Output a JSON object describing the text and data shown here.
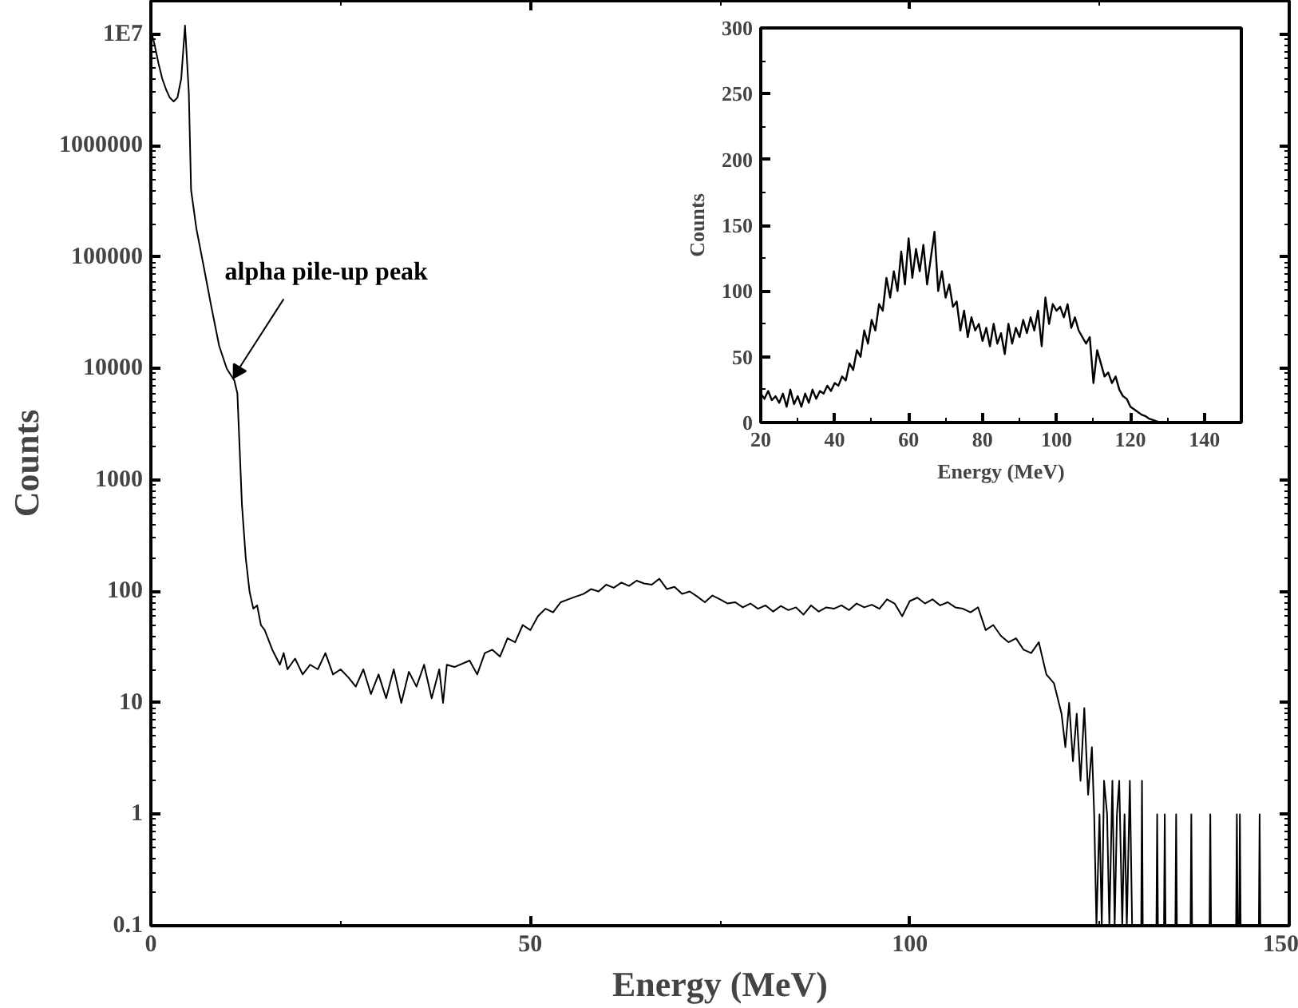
{
  "chart_data": [
    {
      "type": "line",
      "xlabel": "Energy (MeV)",
      "ylabel": "Counts",
      "log": "y",
      "xlim": [
        0,
        150
      ],
      "xticks": [
        0,
        50,
        100,
        150
      ],
      "ylim": [
        0.1,
        20000000
      ],
      "yticks": [
        0.1,
        1,
        10,
        100,
        1000,
        10000,
        100000,
        1000000,
        {
          "value": 10000000,
          "label": "1E7"
        }
      ],
      "grid": false,
      "marker": "none",
      "line_style": "solid",
      "annotations": [
        {
          "text": "alpha pile-up peak",
          "x": 11,
          "y": 7800
        }
      ],
      "series": [
        {
          "color": "#000000",
          "x": [
            0,
            0.5,
            1,
            1.5,
            2,
            2.5,
            3,
            3.5,
            4,
            4.5,
            5,
            5.3,
            6,
            7,
            8,
            9,
            10,
            11,
            11.4,
            12,
            12.5,
            13,
            13.5,
            14,
            14.5,
            15,
            16,
            17,
            17.5,
            18,
            19,
            20,
            21,
            22,
            23,
            24,
            25,
            26,
            27,
            28,
            29,
            30,
            31,
            32,
            33,
            34,
            35,
            36,
            37,
            38,
            38.5,
            39,
            40,
            42,
            43,
            44,
            45,
            46,
            47,
            48,
            49,
            50,
            51,
            52,
            53,
            54,
            55,
            56,
            57,
            58,
            59,
            60,
            61,
            62,
            63,
            64,
            65,
            66,
            67,
            68,
            69,
            70,
            71,
            72,
            73,
            74,
            75,
            76,
            77,
            78,
            79,
            80,
            81,
            82,
            83,
            84,
            85,
            86,
            87,
            88,
            89,
            90,
            91,
            92,
            93,
            94,
            95,
            96,
            97,
            98,
            99,
            100,
            101,
            102,
            103,
            104,
            105,
            106,
            107,
            108,
            109,
            110,
            111,
            112,
            113,
            114,
            115,
            116,
            117,
            118,
            119,
            120,
            120.5,
            121,
            121.5,
            122,
            122.5,
            123,
            123.5,
            124,
            124.3,
            124.6,
            125,
            125.3,
            125.6,
            126,
            126.3,
            126.7,
            127,
            127.3,
            127.6,
            128,
            128.3,
            128.6,
            129,
            129.3,
            130.5,
            130.6,
            130.7,
            132.5,
            132.6,
            132.7,
            133.5,
            133.6,
            133.7,
            135,
            135.1,
            135.2,
            137,
            137.1,
            137.2,
            139.5,
            139.6,
            139.7,
            143,
            143.1,
            143.2,
            143.4,
            143.5,
            143.6,
            146,
            146.1,
            146.2
          ],
          "values": [
            11000000,
            8000000,
            5500000,
            4000000,
            3200000,
            2700000,
            2500000,
            2700000,
            4000000,
            12000000,
            3000000,
            400000,
            180000,
            80000,
            35000,
            16000,
            10000,
            7800,
            6000,
            600,
            200,
            100,
            70,
            75,
            50,
            45,
            30,
            22,
            28,
            20,
            25,
            18,
            22,
            20,
            28,
            18,
            20,
            17,
            14,
            20,
            12,
            18,
            11,
            20,
            10,
            19,
            14,
            22,
            11,
            20,
            10,
            22,
            21,
            24,
            18,
            28,
            30,
            26,
            38,
            35,
            50,
            45,
            60,
            70,
            65,
            80,
            85,
            90,
            95,
            105,
            100,
            115,
            108,
            120,
            112,
            125,
            118,
            115,
            130,
            105,
            110,
            95,
            100,
            90,
            80,
            92,
            85,
            78,
            80,
            72,
            78,
            70,
            75,
            66,
            74,
            68,
            72,
            62,
            75,
            66,
            72,
            70,
            75,
            68,
            78,
            72,
            76,
            70,
            85,
            78,
            60,
            82,
            88,
            78,
            85,
            75,
            80,
            72,
            70,
            65,
            72,
            45,
            50,
            40,
            35,
            38,
            30,
            28,
            35,
            18,
            15,
            8,
            4,
            10,
            3,
            8,
            2,
            9,
            1.5,
            4,
            1,
            0.1,
            1,
            0.1,
            2,
            1,
            0.1,
            2,
            0.1,
            1,
            2,
            0.1,
            1,
            0.1,
            2,
            0.1,
            0.1,
            2,
            0.1,
            0.1,
            1,
            0.1,
            0.1,
            1,
            0.1,
            0.1,
            1,
            0.1,
            0.1,
            1,
            0.1,
            0.1,
            1,
            0.1,
            0.1,
            1,
            0.1,
            0.1,
            1,
            0.1,
            0.1,
            1,
            0.1
          ]
        }
      ]
    },
    {
      "type": "line",
      "xlabel": "Energy (MeV)",
      "ylabel": "Counts",
      "xlim": [
        20,
        150
      ],
      "xticks": [
        20,
        40,
        60,
        80,
        100,
        120,
        140
      ],
      "ylim": [
        0,
        300
      ],
      "yticks": [
        0,
        50,
        100,
        150,
        200,
        250,
        300
      ],
      "grid": false,
      "marker": "none",
      "line_style": "solid",
      "series": [
        {
          "color": "#000000",
          "x": [
            20,
            21,
            22,
            23,
            24,
            25,
            26,
            27,
            28,
            29,
            30,
            31,
            32,
            33,
            34,
            35,
            36,
            37,
            38,
            39,
            40,
            41,
            42,
            43,
            44,
            45,
            46,
            47,
            48,
            49,
            50,
            51,
            52,
            53,
            54,
            55,
            56,
            57,
            58,
            59,
            60,
            61,
            62,
            63,
            64,
            65,
            66,
            67,
            68,
            69,
            70,
            71,
            72,
            73,
            74,
            75,
            76,
            77,
            78,
            79,
            80,
            81,
            82,
            83,
            84,
            85,
            86,
            87,
            88,
            89,
            90,
            91,
            92,
            93,
            94,
            95,
            96,
            97,
            98,
            99,
            100,
            101,
            102,
            103,
            104,
            105,
            106,
            107,
            108,
            109,
            110,
            111,
            112,
            113,
            114,
            115,
            116,
            117,
            118,
            119,
            120,
            121,
            122,
            123,
            124,
            125,
            126,
            127,
            128,
            130,
            135,
            140,
            150
          ],
          "values": [
            22,
            18,
            24,
            17,
            20,
            15,
            22,
            12,
            25,
            14,
            20,
            12,
            22,
            15,
            25,
            18,
            24,
            22,
            28,
            24,
            30,
            28,
            35,
            32,
            45,
            40,
            55,
            50,
            70,
            60,
            78,
            70,
            90,
            85,
            110,
            95,
            115,
            100,
            130,
            105,
            140,
            110,
            132,
            115,
            135,
            105,
            125,
            145,
            100,
            115,
            95,
            105,
            88,
            92,
            70,
            85,
            65,
            80,
            70,
            75,
            62,
            72,
            58,
            75,
            60,
            68,
            52,
            75,
            60,
            72,
            65,
            78,
            68,
            80,
            70,
            85,
            58,
            95,
            75,
            90,
            85,
            88,
            80,
            90,
            72,
            80,
            70,
            65,
            60,
            65,
            30,
            55,
            45,
            35,
            38,
            30,
            35,
            25,
            20,
            18,
            12,
            10,
            8,
            6,
            5,
            3,
            2,
            1,
            0,
            0,
            0,
            0,
            0
          ]
        }
      ]
    }
  ]
}
